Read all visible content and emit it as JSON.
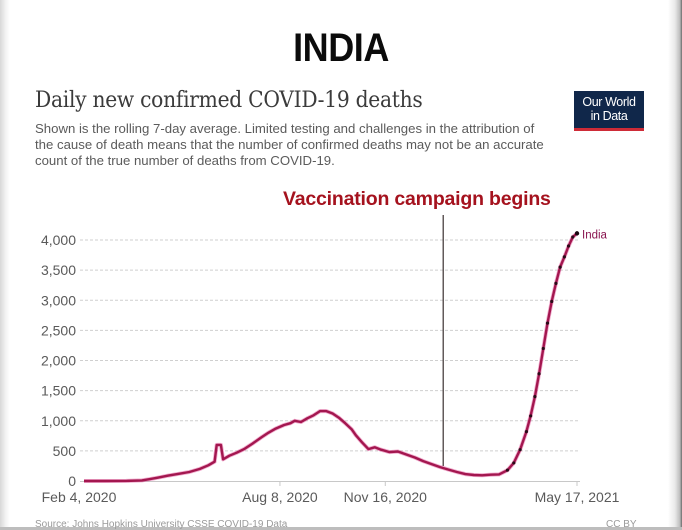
{
  "headline": "INDIA",
  "logo": {
    "line1": "Our World",
    "line2": "in Data",
    "colors": {
      "background": "#10274a",
      "underline": "#ce2b37"
    }
  },
  "chart_data": {
    "type": "line",
    "title": "Daily new confirmed COVID-19 deaths",
    "subtitle": "Shown is the rolling 7-day average. Limited testing and challenges in the attribution of the cause of death means that the number of confirmed deaths may not be an accurate count of the true number of deaths from COVID-19.",
    "xlabel": "",
    "ylabel": "",
    "x_start_date": "2020-02-04",
    "x_end_date": "2021-05-17",
    "ylim": [
      0,
      4000
    ],
    "grid": true,
    "y_ticks": [
      0,
      500,
      1000,
      1500,
      2000,
      2500,
      3000,
      3500,
      4000
    ],
    "y_tick_labels": [
      "0",
      "500",
      "1,000",
      "1,500",
      "2,000",
      "2,500",
      "3,000",
      "3,500",
      "4,000"
    ],
    "x_ticks": [
      {
        "day": 0,
        "label": "Feb 4, 2020"
      },
      {
        "day": 186,
        "label": "Aug 8, 2020"
      },
      {
        "day": 286,
        "label": "Nov 16, 2020"
      },
      {
        "day": 468,
        "label": "May 17, 2021"
      }
    ],
    "series": [
      {
        "name": "India",
        "color": "#a3174f",
        "x_unit": "days since Feb 4, 2020",
        "x": [
          0,
          20,
          40,
          55,
          62,
          70,
          80,
          90,
          100,
          110,
          118,
          124,
          126,
          130,
          132,
          138,
          145,
          152,
          160,
          168,
          175,
          182,
          190,
          196,
          200,
          206,
          212,
          218,
          224,
          230,
          236,
          242,
          248,
          254,
          258,
          264,
          270,
          276,
          282,
          290,
          298,
          306,
          314,
          322,
          330,
          338,
          346,
          354,
          362,
          370,
          378,
          386,
          394,
          402,
          408,
          414,
          420,
          424,
          428,
          432,
          436,
          440,
          444,
          448,
          452,
          456,
          460,
          464,
          468
        ],
        "values": [
          0,
          0,
          2,
          10,
          30,
          55,
          90,
          120,
          150,
          200,
          260,
          320,
          600,
          600,
          360,
          420,
          470,
          530,
          620,
          720,
          800,
          870,
          930,
          960,
          1000,
          980,
          1040,
          1090,
          1160,
          1160,
          1120,
          1050,
          960,
          860,
          760,
          640,
          530,
          560,
          520,
          480,
          490,
          440,
          390,
          330,
          280,
          230,
          190,
          150,
          115,
          100,
          95,
          105,
          110,
          180,
          300,
          520,
          820,
          1080,
          1400,
          1780,
          2200,
          2620,
          2980,
          3280,
          3550,
          3720,
          3900,
          4050,
          4110
        ]
      }
    ],
    "annotations": [
      {
        "text": "Vaccination campaign begins",
        "day": 341,
        "type": "vertical-line"
      }
    ],
    "legend": {
      "placement": "end-of-line",
      "entries": [
        "India"
      ]
    },
    "source_footer": {
      "left": "Source: Johns Hopkins University CSSE COVID-19 Data",
      "right": "CC BY"
    }
  }
}
